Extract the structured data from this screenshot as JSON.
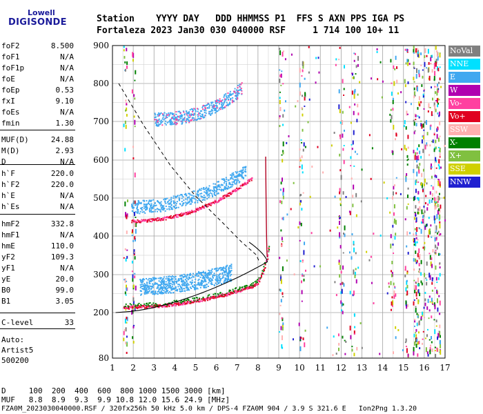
{
  "logo": {
    "top": "Lowell",
    "bottom": "DIGISONDE"
  },
  "header": {
    "line1": "Station    YYYY DAY   DDD HHMMSS P1  FFS S AXN PPS IGA PS",
    "line2": "Fortaleza 2023 Jan30 030 040000 RSF     1 714 100 10+ 11"
  },
  "params": [
    {
      "k": "foF2",
      "v": "8.500"
    },
    {
      "k": "foF1",
      "v": "N/A"
    },
    {
      "k": "foF1p",
      "v": "N/A"
    },
    {
      "k": "foE",
      "v": "N/A"
    },
    {
      "k": "foEp",
      "v": "0.53"
    },
    {
      "k": "fxI",
      "v": "9.10"
    },
    {
      "k": "foEs",
      "v": "N/A"
    },
    {
      "k": "fmin",
      "v": "1.30"
    },
    {
      "k": "MUF(D)",
      "v": "24.88"
    },
    {
      "k": "M(D)",
      "v": "2.93"
    },
    {
      "k": "D",
      "v": "N/A"
    },
    {
      "k": "h`F",
      "v": "220.0"
    },
    {
      "k": "h`F2",
      "v": "220.0"
    },
    {
      "k": "h`E",
      "v": "N/A"
    },
    {
      "k": "h`Es",
      "v": "N/A"
    },
    {
      "k": "hmF2",
      "v": "332.8"
    },
    {
      "k": "hmF1",
      "v": "N/A"
    },
    {
      "k": "hmE",
      "v": "110.0"
    },
    {
      "k": "yF2",
      "v": "109.3"
    },
    {
      "k": "yF1",
      "v": "N/A"
    },
    {
      "k": "yE",
      "v": "20.0"
    },
    {
      "k": "B0",
      "v": "99.0"
    },
    {
      "k": "B1",
      "v": "3.05"
    },
    {
      "k": "C-level",
      "v": "33"
    }
  ],
  "auto": {
    "l1": "Auto:",
    "l2": "Artist5",
    "l3": "500200"
  },
  "legend": [
    {
      "label": "NoVal",
      "color": "#808080"
    },
    {
      "label": "NNE",
      "color": "#00e0ff"
    },
    {
      "label": "E",
      "color": "#40a8f0"
    },
    {
      "label": "W",
      "color": "#b000b0"
    },
    {
      "label": "Vo-",
      "color": "#ff40a0"
    },
    {
      "label": "Vo+",
      "color": "#e00020"
    },
    {
      "label": "SSW",
      "color": "#ffb0b0"
    },
    {
      "label": "X-",
      "color": "#008000"
    },
    {
      "label": "X+",
      "color": "#80c040"
    },
    {
      "label": "SSE",
      "color": "#d0d000"
    },
    {
      "label": "NNW",
      "color": "#2020d0"
    }
  ],
  "chart_data": {
    "type": "scatter",
    "x_ticks": [
      "1",
      "2",
      "3",
      "4",
      "5",
      "6",
      "7",
      "8",
      "9",
      "10",
      "11",
      "12",
      "13",
      "14",
      "15",
      "16",
      "17"
    ],
    "y_ticks": [
      "900",
      "800",
      "700",
      "600",
      "500",
      "400",
      "300",
      "200",
      "80"
    ],
    "xlim": [
      1,
      17
    ],
    "ylim": [
      80,
      900
    ],
    "grid": true
  },
  "footer": {
    "d_line": "D     100  200  400  600  800 1000 1500 3000 [km]",
    "muf_line": "MUF   8.8  8.9  9.3  9.9 10.8 12.0 15.6 24.9 [MHz]",
    "file_line": "FZA0M_2023030040000.RSF / 320fx256h 50 kHz 5.0 km / DPS-4 FZA0M 904 / 3.9 S 321.6 E   Ion2Png 1.3.20"
  }
}
